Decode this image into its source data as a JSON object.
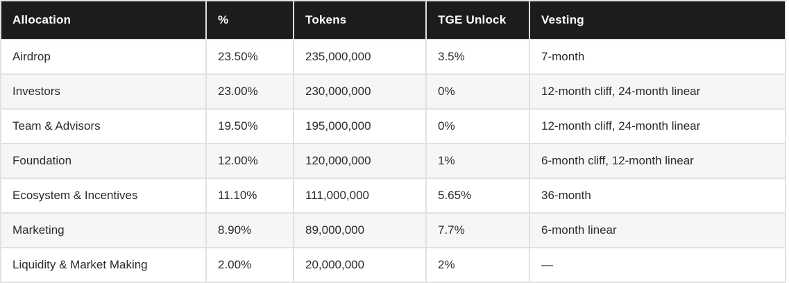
{
  "colors": {
    "header_bg": "#1c1c1c",
    "header_text": "#ffffff",
    "body_text": "#2b2b2b",
    "row_alt_bg": "#f6f6f6",
    "grid_border": "#e1e1e1"
  },
  "chart_data": {
    "type": "table",
    "title": "",
    "columns": [
      "Allocation",
      "%",
      "Tokens",
      "TGE Unlock",
      "Vesting"
    ],
    "rows": [
      [
        "Airdrop",
        "23.50%",
        "235,000,000",
        "3.5%",
        "7-month"
      ],
      [
        "Investors",
        "23.00%",
        "230,000,000",
        "0%",
        "12-month cliff, 24-month linear"
      ],
      [
        "Team & Advisors",
        "19.50%",
        "195,000,000",
        "0%",
        "12-month cliff, 24-month linear"
      ],
      [
        "Foundation",
        "12.00%",
        "120,000,000",
        "1%",
        "6-month cliff, 12-month linear"
      ],
      [
        "Ecosystem & Incentives",
        "11.10%",
        "111,000,000",
        "5.65%",
        "36-month"
      ],
      [
        "Marketing",
        "8.90%",
        "89,000,000",
        "7.7%",
        "6-month linear"
      ],
      [
        "Liquidity & Market Making",
        "2.00%",
        "20,000,000",
        "2%",
        "—"
      ]
    ],
    "numeric": {
      "percent_values": [
        23.5,
        23.0,
        19.5,
        12.0,
        11.1,
        8.9,
        2.0
      ],
      "token_values": [
        235000000,
        230000000,
        195000000,
        120000000,
        111000000,
        89000000,
        20000000
      ],
      "tge_unlock_percent": [
        3.5,
        0,
        0,
        1,
        5.65,
        7.7,
        2
      ]
    }
  }
}
